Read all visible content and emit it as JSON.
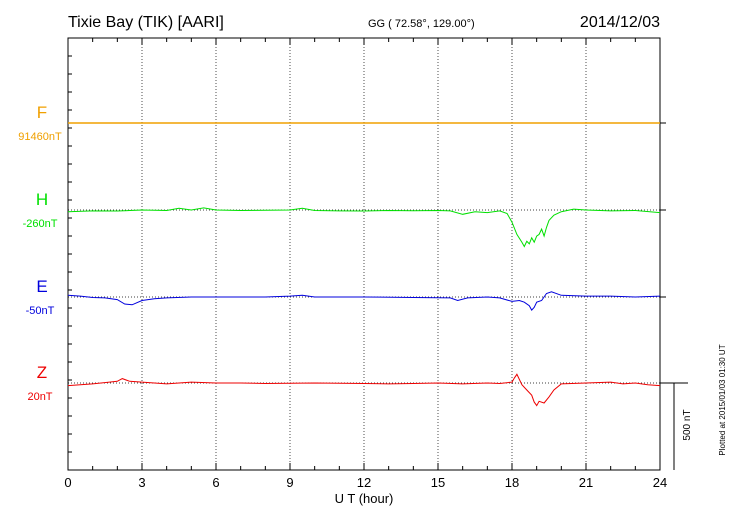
{
  "chart_data": {
    "type": "line",
    "title_left": "Tixie Bay (TIK)  [AARI]",
    "title_center": "GG ( 72.58°, 129.00°)",
    "title_right": "2014/12/03",
    "xlabel": "U T (hour)",
    "xlim": [
      0,
      24
    ],
    "x_ticks": [
      "0",
      "3",
      "6",
      "9",
      "12",
      "15",
      "18",
      "21",
      "24"
    ],
    "grid_x": [
      3,
      6,
      9,
      12,
      15,
      18,
      21
    ],
    "scale_bar_label": "500 nT",
    "plotted_note": "Plotted at 2015/01/03 01:30 UT",
    "baseline_unit": "nT",
    "series": [
      {
        "name": "F",
        "baseline_label": "91460nT",
        "color": "#f0a000",
        "points": [
          [
            0,
            0
          ],
          [
            24,
            0
          ]
        ],
        "dotted_points": [
          [
            0,
            0
          ],
          [
            24,
            0
          ]
        ]
      },
      {
        "name": "H",
        "baseline_label": "-260nT",
        "color": "#00e000",
        "points": [
          [
            0,
            -10
          ],
          [
            1,
            -5
          ],
          [
            2,
            -6
          ],
          [
            3,
            0
          ],
          [
            4,
            -3
          ],
          [
            4.5,
            10
          ],
          [
            5,
            0
          ],
          [
            5.5,
            12
          ],
          [
            6,
            0
          ],
          [
            7,
            -3
          ],
          [
            8,
            -2
          ],
          [
            9,
            0
          ],
          [
            9.5,
            10
          ],
          [
            10,
            -3
          ],
          [
            11,
            -5
          ],
          [
            12,
            -6
          ],
          [
            13,
            -3
          ],
          [
            14,
            -4
          ],
          [
            15,
            -3
          ],
          [
            15.5,
            -5
          ],
          [
            16,
            -25
          ],
          [
            16.5,
            -10
          ],
          [
            17,
            -15
          ],
          [
            17.5,
            -5
          ],
          [
            17.8,
            -20
          ],
          [
            18,
            -70
          ],
          [
            18.2,
            -140
          ],
          [
            18.4,
            -185
          ],
          [
            18.5,
            -210
          ],
          [
            18.6,
            -180
          ],
          [
            18.7,
            -195
          ],
          [
            18.8,
            -160
          ],
          [
            18.9,
            -185
          ],
          [
            19,
            -150
          ],
          [
            19.1,
            -140
          ],
          [
            19.2,
            -110
          ],
          [
            19.3,
            -150
          ],
          [
            19.4,
            -100
          ],
          [
            19.5,
            -60
          ],
          [
            19.7,
            -30
          ],
          [
            20,
            -10
          ],
          [
            20.5,
            5
          ],
          [
            21,
            0
          ],
          [
            22,
            -5
          ],
          [
            23,
            -3
          ],
          [
            24,
            -15
          ]
        ]
      },
      {
        "name": "E",
        "baseline_label": "-50nT",
        "color": "#0000dd",
        "points": [
          [
            0,
            10
          ],
          [
            0.5,
            5
          ],
          [
            1,
            -3
          ],
          [
            1.5,
            -5
          ],
          [
            2,
            -15
          ],
          [
            2.3,
            -40
          ],
          [
            2.6,
            -45
          ],
          [
            3,
            -20
          ],
          [
            3.5,
            -10
          ],
          [
            4,
            -5
          ],
          [
            5,
            0
          ],
          [
            6,
            0
          ],
          [
            8,
            0
          ],
          [
            9,
            5
          ],
          [
            9.5,
            10
          ],
          [
            10,
            0
          ],
          [
            12,
            0
          ],
          [
            14,
            -3
          ],
          [
            15.5,
            -5
          ],
          [
            15.8,
            -20
          ],
          [
            16.2,
            -5
          ],
          [
            17,
            0
          ],
          [
            17.5,
            -5
          ],
          [
            18,
            -25
          ],
          [
            18.3,
            -20
          ],
          [
            18.5,
            -30
          ],
          [
            18.7,
            -50
          ],
          [
            18.8,
            -75
          ],
          [
            18.9,
            -60
          ],
          [
            19,
            -30
          ],
          [
            19.2,
            -20
          ],
          [
            19.4,
            20
          ],
          [
            19.6,
            30
          ],
          [
            20,
            10
          ],
          [
            21,
            5
          ],
          [
            22,
            5
          ],
          [
            23,
            0
          ],
          [
            24,
            5
          ]
        ]
      },
      {
        "name": "Z",
        "baseline_label": "20nT",
        "color": "#ee0000",
        "points": [
          [
            0,
            -15
          ],
          [
            1,
            -5
          ],
          [
            2,
            10
          ],
          [
            2.2,
            25
          ],
          [
            2.5,
            10
          ],
          [
            3,
            5
          ],
          [
            4,
            -5
          ],
          [
            5,
            5
          ],
          [
            6,
            0
          ],
          [
            7,
            0
          ],
          [
            8,
            -3
          ],
          [
            9,
            -2
          ],
          [
            10,
            0
          ],
          [
            12,
            -3
          ],
          [
            13,
            -5
          ],
          [
            14,
            -3
          ],
          [
            15,
            0
          ],
          [
            16,
            -5
          ],
          [
            17,
            0
          ],
          [
            17.5,
            -3
          ],
          [
            18,
            5
          ],
          [
            18.1,
            30
          ],
          [
            18.2,
            50
          ],
          [
            18.3,
            20
          ],
          [
            18.4,
            -10
          ],
          [
            18.6,
            -40
          ],
          [
            18.8,
            -70
          ],
          [
            18.9,
            -110
          ],
          [
            19,
            -130
          ],
          [
            19.1,
            -105
          ],
          [
            19.3,
            -115
          ],
          [
            19.5,
            -80
          ],
          [
            19.7,
            -40
          ],
          [
            20,
            -5
          ],
          [
            21,
            0
          ],
          [
            22,
            5
          ],
          [
            22.5,
            -5
          ],
          [
            23,
            0
          ],
          [
            23.5,
            -10
          ],
          [
            24,
            -15
          ]
        ]
      }
    ]
  }
}
